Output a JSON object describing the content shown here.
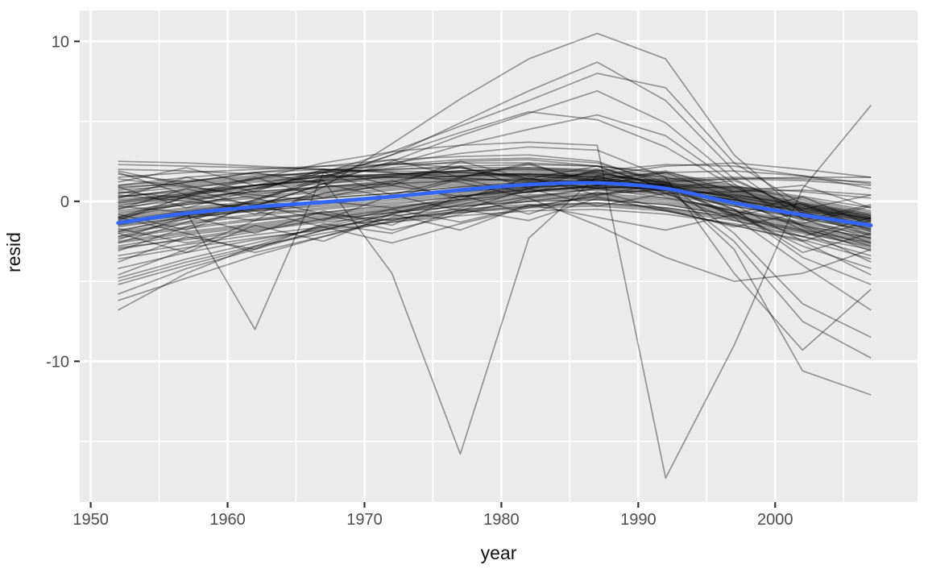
{
  "chart_data": {
    "type": "line",
    "title": "",
    "xlabel": "year",
    "ylabel": "resid",
    "grid": true,
    "legend": "none",
    "x": [
      1952,
      1957,
      1962,
      1967,
      1972,
      1977,
      1982,
      1987,
      1992,
      1997,
      2002,
      2007
    ],
    "x_axis": {
      "lim": [
        1949.2,
        2010.4
      ],
      "major_ticks": [
        1950,
        1960,
        1970,
        1980,
        1990,
        2000
      ],
      "minor_ticks": [
        1955,
        1965,
        1975,
        1985,
        1995,
        2005
      ]
    },
    "y_axis": {
      "lim": [
        -18.8,
        11.93
      ],
      "major_ticks": [
        10,
        0,
        -10
      ],
      "minor_ticks": [
        5,
        -5,
        -15
      ]
    },
    "smooth_line": {
      "color": "#3366FF",
      "width": 4.6,
      "values": [
        -1.35,
        -0.75,
        -0.35,
        -0.05,
        0.3,
        0.7,
        1.05,
        1.15,
        0.8,
        -0.1,
        -0.85,
        -1.5
      ]
    },
    "country_lines": {
      "color": "#000000",
      "opacity": 0.38,
      "width": 1.7,
      "series": [
        [
          -0.3,
          0.4,
          1.0,
          1.3,
          -4.5,
          -15.8,
          -2.3,
          1.6,
          2.2,
          2.4,
          2.0,
          1.5
        ],
        [
          -1.0,
          0.3,
          1.4,
          2.4,
          3.1,
          3.5,
          3.7,
          3.5,
          -17.3,
          -9.0,
          0.8,
          6.0
        ],
        [
          -1.5,
          -0.7,
          -8.0,
          1.8,
          2.4,
          2.1,
          1.4,
          0.8,
          0.5,
          0.6,
          0.7,
          0.4
        ],
        [
          -4.6,
          -3.0,
          -1.2,
          0.9,
          3.6,
          6.4,
          8.9,
          10.5,
          8.9,
          2.9,
          -0.8,
          -1.6
        ],
        [
          -2.2,
          -1.1,
          0.0,
          1.4,
          2.9,
          4.9,
          6.9,
          8.7,
          6.3,
          1.9,
          -1.1,
          -2.6
        ],
        [
          -1.1,
          -0.1,
          0.8,
          1.8,
          3.1,
          4.7,
          6.3,
          8.0,
          7.1,
          2.4,
          -0.2,
          -1.9
        ],
        [
          -3.1,
          -1.6,
          -0.3,
          1.1,
          2.5,
          4.1,
          5.5,
          6.9,
          4.9,
          1.4,
          -0.6,
          -2.1
        ],
        [
          -2.6,
          -1.3,
          0.1,
          1.5,
          2.9,
          4.3,
          5.6,
          5.1,
          3.4,
          0.9,
          -1.1,
          -2.3
        ],
        [
          -1.9,
          -0.9,
          0.1,
          1.3,
          2.3,
          3.5,
          4.5,
          5.4,
          4.1,
          1.1,
          -1.6,
          -3.1
        ],
        [
          0.5,
          1.2,
          1.8,
          2.2,
          2.6,
          2.8,
          2.9,
          2.5,
          1.0,
          -3.0,
          -10.6,
          -12.1
        ],
        [
          -1.0,
          0.0,
          0.8,
          1.6,
          2.4,
          3.0,
          3.4,
          3.2,
          1.5,
          -4.5,
          -9.3,
          -5.5
        ],
        [
          0.2,
          0.8,
          1.4,
          1.9,
          2.3,
          2.6,
          2.7,
          2.4,
          1.2,
          -2.0,
          -6.4,
          -8.5
        ],
        [
          -0.5,
          0.3,
          1.0,
          1.6,
          2.1,
          2.5,
          2.6,
          2.2,
          0.8,
          -2.5,
          -7.5,
          -9.8
        ],
        [
          1.0,
          1.5,
          1.8,
          2.0,
          1.8,
          1.2,
          0.2,
          -1.5,
          -3.5,
          -5.0,
          -4.5,
          -3.0
        ],
        [
          0.0,
          0.5,
          1.0,
          1.4,
          1.7,
          1.9,
          2.0,
          1.8,
          1.0,
          -1.0,
          -4.0,
          -6.8
        ],
        [
          -0.8,
          -0.2,
          0.4,
          0.9,
          1.3,
          1.6,
          1.8,
          1.7,
          1.2,
          -0.5,
          -3.5,
          -5.2
        ],
        [
          -6.8,
          -4.5,
          -2.8,
          -1.5,
          -0.5,
          0.3,
          0.8,
          1.2,
          1.4,
          1.5,
          1.4,
          1.2
        ],
        [
          -6.2,
          -4.8,
          -3.4,
          -2.2,
          -1.2,
          -0.4,
          0.3,
          0.8,
          1.2,
          1.4,
          1.5,
          1.5
        ],
        [
          -5.8,
          -4.2,
          -3.0,
          -1.8,
          -0.8,
          0.0,
          0.6,
          1.0,
          1.3,
          1.4,
          1.3,
          1.0
        ],
        [
          -5.2,
          -4.0,
          -2.9,
          -1.8,
          -0.8,
          0.2,
          1.1,
          1.9,
          2.3,
          2.2,
          1.6,
          0.8
        ],
        [
          -4.8,
          -3.6,
          -2.6,
          -1.6,
          -0.7,
          0.1,
          0.8,
          1.4,
          1.8,
          1.9,
          1.6,
          1.1
        ],
        [
          -1.0,
          -0.5,
          -0.1,
          0.2,
          0.5,
          0.9,
          1.2,
          1.3,
          0.9,
          0.2,
          -0.5,
          -1.1
        ],
        [
          -2.0,
          -1.4,
          -0.9,
          -0.5,
          -0.1,
          0.3,
          0.6,
          0.7,
          0.4,
          -0.3,
          -1.1,
          -1.8
        ],
        [
          -0.4,
          0.1,
          0.5,
          0.8,
          1.1,
          1.4,
          1.6,
          1.6,
          1.2,
          0.5,
          -0.3,
          -1.0
        ],
        [
          -2.6,
          -2.0,
          -1.5,
          -1.0,
          -0.6,
          -0.2,
          0.1,
          0.2,
          -0.1,
          -0.8,
          -1.6,
          -2.4
        ],
        [
          0.3,
          0.7,
          1.0,
          1.3,
          1.6,
          1.9,
          2.1,
          2.0,
          1.6,
          0.8,
          -0.1,
          -0.9
        ],
        [
          -1.6,
          -1.0,
          -0.6,
          -0.2,
          0.2,
          0.6,
          0.9,
          1.0,
          0.7,
          0.0,
          -0.8,
          -1.5
        ],
        [
          -3.0,
          -2.3,
          -1.7,
          -1.2,
          -0.7,
          -0.3,
          0.0,
          0.1,
          -0.2,
          -0.9,
          -1.8,
          -2.6
        ],
        [
          0.8,
          1.2,
          1.5,
          1.8,
          2.0,
          2.2,
          2.3,
          2.2,
          1.8,
          1.0,
          0.1,
          -0.7
        ],
        [
          -1.3,
          -0.9,
          -0.5,
          -0.1,
          0.3,
          0.7,
          1.0,
          1.1,
          0.8,
          0.1,
          -0.7,
          -1.4
        ],
        [
          -2.3,
          -1.7,
          -1.2,
          -0.8,
          -0.4,
          0.0,
          0.3,
          0.4,
          0.1,
          -0.6,
          -1.4,
          -2.1
        ],
        [
          1.5,
          1.8,
          2.0,
          2.2,
          2.3,
          2.4,
          2.4,
          2.2,
          1.7,
          0.9,
          0.0,
          -0.8
        ],
        [
          -0.7,
          -0.2,
          0.2,
          0.6,
          0.9,
          1.2,
          1.4,
          1.4,
          1.0,
          0.3,
          -0.5,
          -1.2
        ],
        [
          -1.9,
          -1.3,
          -0.8,
          -0.4,
          0.0,
          0.4,
          0.7,
          0.8,
          0.5,
          -0.2,
          -1.0,
          -1.7
        ],
        [
          2.3,
          2.2,
          2.1,
          2.0,
          1.9,
          1.8,
          1.6,
          1.3,
          0.8,
          0.1,
          -0.7,
          -1.4
        ],
        [
          -3.4,
          -2.7,
          -2.1,
          -1.6,
          -1.1,
          -0.7,
          -0.4,
          -0.3,
          -0.6,
          -1.2,
          -2.0,
          -2.8
        ],
        [
          0.0,
          0.4,
          0.8,
          1.1,
          1.4,
          1.6,
          1.7,
          1.6,
          1.2,
          0.5,
          -0.4,
          -1.1
        ],
        [
          -1.1,
          -0.6,
          -0.2,
          0.2,
          0.5,
          0.9,
          1.1,
          1.2,
          0.9,
          0.2,
          -0.6,
          -1.3
        ],
        [
          -2.8,
          -2.1,
          -1.6,
          -1.1,
          -0.7,
          -0.3,
          0.0,
          0.1,
          -0.2,
          -0.9,
          -1.7,
          -2.5
        ],
        [
          1.0,
          1.3,
          1.6,
          1.8,
          2.0,
          2.1,
          2.1,
          1.9,
          1.5,
          0.7,
          -0.2,
          -1.0
        ],
        [
          -0.2,
          0.2,
          0.6,
          0.9,
          1.2,
          1.5,
          1.7,
          1.7,
          1.3,
          0.6,
          -0.2,
          -0.9
        ],
        [
          -1.5,
          -1.0,
          -0.6,
          -0.3,
          0.1,
          0.5,
          0.8,
          0.9,
          0.6,
          -0.1,
          -0.9,
          -1.6
        ],
        [
          -2.2,
          -1.6,
          -1.1,
          -0.7,
          -0.3,
          0.1,
          0.4,
          0.5,
          0.2,
          -0.5,
          -1.3,
          -2.0
        ],
        [
          0.5,
          0.9,
          1.2,
          1.5,
          1.7,
          1.9,
          2.0,
          1.9,
          1.5,
          0.7,
          -0.1,
          -0.8
        ],
        [
          -0.9,
          -0.4,
          0.0,
          0.3,
          0.7,
          1.0,
          1.2,
          1.3,
          1.0,
          0.3,
          -0.5,
          -1.2
        ],
        [
          -1.8,
          -1.1,
          -0.5,
          -0.1,
          0.3,
          0.8,
          1.1,
          1.2,
          0.8,
          0.0,
          -0.9,
          -1.7
        ],
        [
          2.0,
          1.9,
          1.7,
          1.6,
          1.5,
          1.4,
          1.3,
          1.1,
          0.7,
          0.1,
          -0.6,
          -1.2
        ],
        [
          -2.5,
          -1.9,
          -1.4,
          -0.9,
          -0.5,
          -0.1,
          0.2,
          0.3,
          0.0,
          -0.7,
          -1.5,
          -2.3
        ],
        [
          0.1,
          0.5,
          0.9,
          1.2,
          1.5,
          1.8,
          1.9,
          1.8,
          1.4,
          0.6,
          -0.3,
          -1.0
        ],
        [
          -0.6,
          -0.1,
          0.3,
          0.7,
          1.0,
          1.3,
          1.5,
          1.5,
          1.1,
          0.4,
          -0.4,
          -1.1
        ],
        [
          -1.4,
          -0.9,
          -0.5,
          -0.1,
          0.3,
          0.6,
          0.9,
          1.0,
          0.7,
          0.0,
          -0.8,
          -1.5
        ],
        [
          -0.5,
          0.8,
          -0.3,
          1.1,
          0.2,
          1.4,
          0.5,
          1.6,
          0.3,
          -0.6,
          -1.4,
          -0.3
        ],
        [
          1.8,
          0.4,
          1.5,
          0.2,
          1.2,
          2.2,
          0.8,
          2.0,
          0.5,
          -0.8,
          0.3,
          -1.5
        ],
        [
          -2.4,
          -0.9,
          -2.0,
          -0.6,
          -1.5,
          0.4,
          -0.8,
          0.6,
          -0.5,
          -1.6,
          -0.7,
          -2.2
        ],
        [
          0.9,
          -0.4,
          0.7,
          1.8,
          0.4,
          1.5,
          2.4,
          1.0,
          1.8,
          0.2,
          -1.2,
          -0.2
        ],
        [
          -1.2,
          0.3,
          -0.8,
          0.5,
          1.3,
          0.1,
          1.5,
          0.4,
          1.1,
          -0.9,
          -0.1,
          -1.8
        ],
        [
          -3.8,
          -2.2,
          -3.0,
          -1.4,
          -2.0,
          -0.5,
          -1.2,
          0.2,
          -0.6,
          -1.5,
          -2.5,
          -1.2
        ],
        [
          0.2,
          1.5,
          0.6,
          2.0,
          1.0,
          2.5,
          1.4,
          2.2,
          0.8,
          1.3,
          -0.5,
          0.4
        ],
        [
          -2.0,
          -3.2,
          -1.5,
          -2.5,
          -0.8,
          -1.8,
          -0.2,
          -1.0,
          -1.8,
          -0.8,
          -2.8,
          -4.2
        ],
        [
          1.2,
          2.1,
          1.0,
          1.9,
          2.6,
          1.5,
          2.3,
          1.2,
          1.9,
          0.6,
          1.0,
          -0.4
        ],
        [
          -0.8,
          -1.8,
          -0.2,
          -1.2,
          0.4,
          -0.6,
          0.8,
          -0.3,
          0.5,
          -1.2,
          -2.2,
          -1.0
        ],
        [
          0.6,
          0.2,
          -0.6,
          -1.6,
          -2.6,
          -1.4,
          -0.4,
          0.4,
          0.8,
          0.9,
          0.6,
          0.2
        ],
        [
          -1.0,
          -2.0,
          -3.2,
          -2.2,
          -1.0,
          -0.2,
          0.6,
          1.0,
          1.1,
          0.9,
          0.3,
          -0.4
        ],
        [
          1.9,
          1.0,
          0.2,
          -0.8,
          -1.8,
          -0.8,
          0.2,
          0.8,
          1.0,
          0.8,
          0.2,
          -0.6
        ],
        [
          -4.2,
          -3.2,
          -2.4,
          -1.7,
          -1.1,
          -0.6,
          -0.3,
          -0.2,
          -0.5,
          -1.1,
          -1.9,
          -2.7
        ],
        [
          2.5,
          2.4,
          2.2,
          2.0,
          1.8,
          1.5,
          1.2,
          0.8,
          0.2,
          -0.6,
          -1.5,
          -2.3
        ],
        [
          -5.0,
          -3.8,
          -2.8,
          -2.0,
          -1.3,
          -0.7,
          -0.3,
          -0.1,
          -0.4,
          -1.0,
          -1.8,
          -2.6
        ],
        [
          0.4,
          0.0,
          -0.4,
          -0.8,
          -1.2,
          -0.6,
          0.0,
          0.5,
          0.7,
          0.4,
          -0.2,
          -0.9
        ],
        [
          -0.3,
          -0.7,
          -1.2,
          -0.7,
          -0.2,
          0.3,
          0.7,
          0.9,
          0.7,
          0.1,
          -0.6,
          -1.3
        ],
        [
          1.4,
          0.9,
          0.4,
          0.0,
          -0.4,
          0.1,
          0.6,
          0.9,
          0.8,
          0.3,
          -0.4,
          -1.1
        ],
        [
          -3.6,
          -2.9,
          -2.3,
          -1.8,
          -1.3,
          -0.9,
          -0.6,
          -0.5,
          -0.8,
          -1.4,
          -2.2,
          -3.0
        ],
        [
          0.7,
          1.0,
          1.3,
          1.5,
          1.6,
          1.7,
          1.7,
          1.5,
          1.0,
          0.2,
          -1.8,
          -3.8
        ],
        [
          -0.1,
          0.3,
          0.6,
          0.9,
          1.1,
          1.3,
          1.4,
          1.2,
          0.8,
          -0.2,
          -2.5,
          -4.6
        ],
        [
          0.9,
          1.1,
          1.4,
          1.6,
          1.7,
          1.8,
          1.7,
          1.5,
          0.9,
          -0.5,
          -3.2,
          -2.0
        ],
        [
          -1.2,
          -0.6,
          -0.1,
          0.4,
          0.8,
          1.1,
          1.3,
          1.3,
          0.9,
          -0.8,
          -2.2,
          -3.4
        ],
        [
          0.3,
          0.6,
          1.0,
          1.3,
          1.5,
          1.6,
          1.6,
          1.4,
          0.9,
          0.0,
          -1.5,
          -2.8
        ],
        [
          -0.1,
          0.4,
          -0.2,
          0.5,
          1.0,
          0.3,
          0.9,
          1.4,
          0.6,
          -0.3,
          -1.0,
          -1.9
        ],
        [
          -2.9,
          -2.4,
          -1.8,
          -1.3,
          -0.9,
          -0.5,
          -0.2,
          -0.1,
          -0.4,
          -1.0,
          -1.9,
          -2.9
        ],
        [
          1.7,
          1.2,
          1.8,
          1.1,
          1.6,
          2.1,
          1.3,
          1.8,
          1.1,
          0.4,
          -0.3,
          -1.1
        ],
        [
          -1.7,
          -2.6,
          -1.9,
          -1.1,
          -0.5,
          -1.3,
          -0.3,
          0.3,
          -0.6,
          -1.5,
          -2.4,
          -3.6
        ]
      ]
    }
  },
  "axis_tick_labels": {
    "x": [
      "1950",
      "1960",
      "1970",
      "1980",
      "1990",
      "2000"
    ],
    "y": [
      "10",
      "0",
      "-10"
    ]
  },
  "style": {
    "outer_bg": "#FFFFFF",
    "panel_bg": "#EBEBEB",
    "grid_color": "#FFFFFF",
    "tick_color": "#333333",
    "tick_label_color": "#4D4D4D",
    "axis_title_color": "#111111",
    "smooth_color": "#3366FF"
  }
}
